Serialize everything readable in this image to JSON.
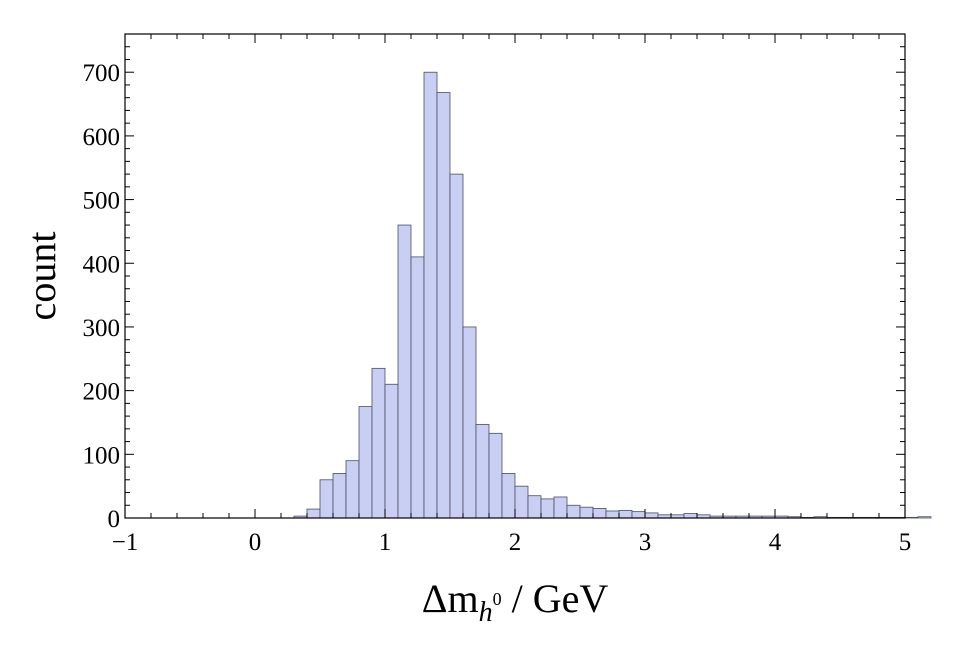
{
  "chart_data": {
    "type": "bar",
    "xlabel_parts": {
      "main": "Δm",
      "sub": "h",
      "sup": "0",
      "rest": " / GeV"
    },
    "ylabel": "count",
    "xlim": [
      -1,
      5
    ],
    "ylim": [
      0,
      760
    ],
    "x_ticks": [
      -1,
      0,
      1,
      2,
      3,
      4,
      5
    ],
    "x_tick_labels": [
      "−1",
      "0",
      "1",
      "2",
      "3",
      "4",
      "5"
    ],
    "y_ticks": [
      0,
      100,
      200,
      300,
      400,
      500,
      600,
      700
    ],
    "y_tick_labels": [
      "0",
      "100",
      "200",
      "300",
      "400",
      "500",
      "600",
      "700"
    ],
    "bin_width": 0.1,
    "bin_start": 0.3,
    "counts": [
      3,
      14,
      60,
      70,
      90,
      175,
      235,
      210,
      460,
      410,
      700,
      668,
      540,
      300,
      147,
      133,
      70,
      50,
      35,
      30,
      33,
      20,
      17,
      15,
      11,
      12,
      10,
      8,
      5,
      5,
      7,
      5,
      3,
      3,
      3,
      3,
      3,
      3,
      2,
      1,
      2,
      1,
      1,
      1,
      1,
      1,
      1,
      1,
      2
    ],
    "bar_color": "#c9cff2",
    "bar_edge_color": "#4a4d66",
    "grid": false
  }
}
